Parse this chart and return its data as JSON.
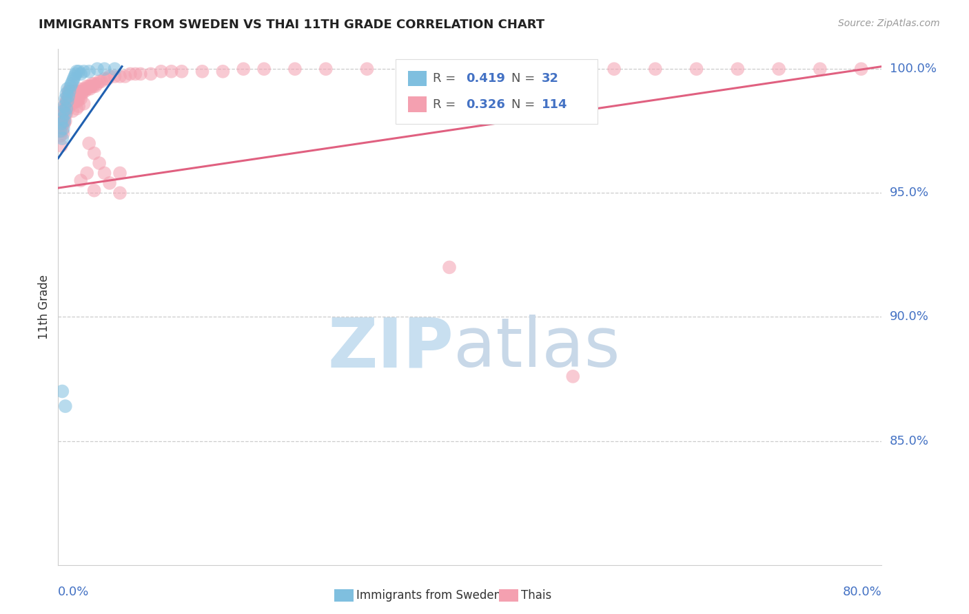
{
  "title": "IMMIGRANTS FROM SWEDEN VS THAI 11TH GRADE CORRELATION CHART",
  "source_text": "Source: ZipAtlas.com",
  "ylabel": "11th Grade",
  "ytick_labels": [
    "100.0%",
    "95.0%",
    "90.0%",
    "85.0%"
  ],
  "ytick_values": [
    1.0,
    0.95,
    0.9,
    0.85
  ],
  "x_min": 0.0,
  "x_max": 0.8,
  "y_min": 0.8,
  "y_max": 1.008,
  "legend_r_sweden": "0.419",
  "legend_n_sweden": "32",
  "legend_r_thai": "0.326",
  "legend_n_thai": "114",
  "color_sweden": "#7fbfdf",
  "color_thai": "#f4a0b0",
  "color_sweden_line": "#2060b0",
  "color_thai_line": "#e06080",
  "color_ytick": "#4472c4",
  "sweden_line_x": [
    0.0,
    0.062
  ],
  "sweden_line_y": [
    0.964,
    1.001
  ],
  "thai_line_x": [
    0.0,
    0.8
  ],
  "thai_line_y": [
    0.952,
    1.001
  ],
  "sweden_pts_x": [
    0.002,
    0.003,
    0.004,
    0.004,
    0.005,
    0.005,
    0.006,
    0.006,
    0.007,
    0.007,
    0.008,
    0.008,
    0.009,
    0.009,
    0.01,
    0.011,
    0.012,
    0.013,
    0.014,
    0.015,
    0.016,
    0.017,
    0.018,
    0.02,
    0.022,
    0.025,
    0.03,
    0.038,
    0.045,
    0.055,
    0.004,
    0.007
  ],
  "sweden_pts_y": [
    0.975,
    0.978,
    0.98,
    0.972,
    0.976,
    0.983,
    0.979,
    0.985,
    0.982,
    0.988,
    0.984,
    0.99,
    0.987,
    0.992,
    0.989,
    0.991,
    0.993,
    0.994,
    0.995,
    0.996,
    0.997,
    0.998,
    0.999,
    0.999,
    0.998,
    0.999,
    0.999,
    1.0,
    1.0,
    1.0,
    0.87,
    0.864
  ],
  "thai_pts_x": [
    0.002,
    0.003,
    0.003,
    0.004,
    0.004,
    0.005,
    0.005,
    0.006,
    0.006,
    0.007,
    0.007,
    0.007,
    0.008,
    0.008,
    0.009,
    0.009,
    0.01,
    0.01,
    0.01,
    0.011,
    0.011,
    0.012,
    0.012,
    0.013,
    0.013,
    0.014,
    0.014,
    0.015,
    0.015,
    0.016,
    0.016,
    0.017,
    0.017,
    0.018,
    0.018,
    0.019,
    0.019,
    0.02,
    0.02,
    0.021,
    0.022,
    0.022,
    0.023,
    0.024,
    0.025,
    0.026,
    0.027,
    0.028,
    0.029,
    0.03,
    0.031,
    0.032,
    0.033,
    0.034,
    0.035,
    0.036,
    0.038,
    0.04,
    0.042,
    0.045,
    0.048,
    0.05,
    0.055,
    0.06,
    0.065,
    0.07,
    0.075,
    0.08,
    0.09,
    0.1,
    0.11,
    0.12,
    0.14,
    0.16,
    0.18,
    0.2,
    0.23,
    0.26,
    0.3,
    0.34,
    0.38,
    0.42,
    0.46,
    0.5,
    0.54,
    0.58,
    0.62,
    0.66,
    0.7,
    0.74,
    0.78,
    0.005,
    0.006,
    0.008,
    0.01,
    0.012,
    0.014,
    0.016,
    0.018,
    0.02,
    0.025,
    0.03,
    0.035,
    0.04,
    0.045,
    0.05,
    0.06,
    0.022,
    0.028,
    0.035,
    0.06,
    0.38,
    0.5
  ],
  "thai_pts_y": [
    0.973,
    0.977,
    0.969,
    0.98,
    0.975,
    0.982,
    0.978,
    0.984,
    0.98,
    0.986,
    0.983,
    0.979,
    0.987,
    0.984,
    0.989,
    0.985,
    0.991,
    0.988,
    0.984,
    0.99,
    0.987,
    0.992,
    0.988,
    0.991,
    0.987,
    0.989,
    0.986,
    0.99,
    0.987,
    0.991,
    0.988,
    0.99,
    0.987,
    0.991,
    0.988,
    0.99,
    0.987,
    0.992,
    0.988,
    0.99,
    0.991,
    0.988,
    0.99,
    0.991,
    0.992,
    0.991,
    0.992,
    0.993,
    0.992,
    0.993,
    0.992,
    0.993,
    0.994,
    0.993,
    0.994,
    0.993,
    0.994,
    0.995,
    0.995,
    0.996,
    0.996,
    0.997,
    0.997,
    0.997,
    0.997,
    0.998,
    0.998,
    0.998,
    0.998,
    0.999,
    0.999,
    0.999,
    0.999,
    0.999,
    1.0,
    1.0,
    1.0,
    1.0,
    1.0,
    1.0,
    1.0,
    1.0,
    1.0,
    1.0,
    1.0,
    1.0,
    1.0,
    1.0,
    1.0,
    1.0,
    1.0,
    0.974,
    0.978,
    0.982,
    0.985,
    0.986,
    0.983,
    0.987,
    0.984,
    0.985,
    0.986,
    0.97,
    0.966,
    0.962,
    0.958,
    0.954,
    0.95,
    0.955,
    0.958,
    0.951,
    0.958,
    0.92,
    0.876
  ]
}
